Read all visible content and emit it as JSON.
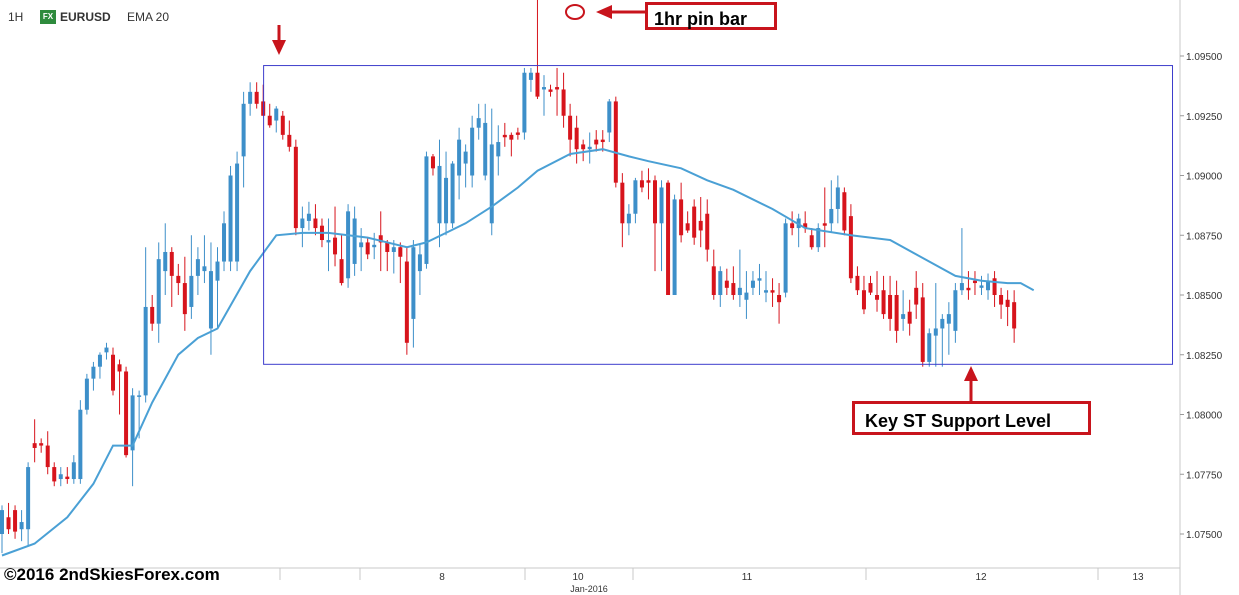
{
  "header": {
    "timeframe": "1H",
    "fx_badge": "FX",
    "symbol": "EURUSD",
    "indicator": "EMA 20"
  },
  "colors": {
    "up": "#3d8fc9",
    "down": "#d7141c",
    "ema": "#4aa0d5",
    "range_box": "#3d3dcc",
    "annotation": "#c8141c"
  },
  "annotations": {
    "pin_bar_label": "1hr pin bar",
    "support_label": "Key ST Support Level"
  },
  "copyright": "©2016 2ndSkiesForex.com",
  "chart_data": {
    "type": "candlestick",
    "title": "",
    "xlabel": "Jan-2016",
    "ylabel": "",
    "ylim": [
      1.0737,
      1.099
    ],
    "y_ticks": [
      "1.09500",
      "1.09250",
      "1.09000",
      "1.08750",
      "1.08500",
      "1.08250",
      "1.08000",
      "1.07750",
      "1.07500"
    ],
    "x_ticks": [
      "8",
      "10",
      "11",
      "12",
      "13"
    ],
    "x_month_label": "Jan-2016",
    "range_box": {
      "top": 1.0946,
      "bottom": 1.0821,
      "start_bar": 37,
      "end_bar": 167
    },
    "series": [
      {
        "name": "EURUSD",
        "fields": [
          "open",
          "high",
          "low",
          "close"
        ],
        "ohlc": [
          [
            1.075,
            1.0762,
            1.0742,
            1.076
          ],
          [
            1.0757,
            1.0763,
            1.075,
            1.0752
          ],
          [
            1.076,
            1.0762,
            1.0748,
            1.0751
          ],
          [
            1.0752,
            1.076,
            1.0747,
            1.0755
          ],
          [
            1.0752,
            1.078,
            1.0745,
            1.0778
          ],
          [
            1.0788,
            1.0798,
            1.078,
            1.0786
          ],
          [
            1.0788,
            1.079,
            1.0784,
            1.0787
          ],
          [
            1.0787,
            1.0793,
            1.0775,
            1.0778
          ],
          [
            1.0778,
            1.078,
            1.077,
            1.0772
          ],
          [
            1.0773,
            1.0778,
            1.077,
            1.0775
          ],
          [
            1.0774,
            1.0778,
            1.0771,
            1.0773
          ],
          [
            1.0773,
            1.0783,
            1.0771,
            1.078
          ],
          [
            1.0773,
            1.0806,
            1.0771,
            1.0802
          ],
          [
            1.0802,
            1.0817,
            1.08,
            1.0815
          ],
          [
            1.0815,
            1.0822,
            1.081,
            1.082
          ],
          [
            1.082,
            1.0826,
            1.0815,
            1.0825
          ],
          [
            1.0826,
            1.083,
            1.0823,
            1.0828
          ],
          [
            1.0825,
            1.0828,
            1.0808,
            1.081
          ],
          [
            1.0821,
            1.0823,
            1.08,
            1.0818
          ],
          [
            1.0818,
            1.082,
            1.0782,
            1.0783
          ],
          [
            1.0785,
            1.0811,
            1.077,
            1.0808
          ],
          [
            1.0808,
            1.081,
            1.079,
            1.0808
          ],
          [
            1.0808,
            1.087,
            1.0805,
            1.0845
          ],
          [
            1.0845,
            1.085,
            1.0835,
            1.0838
          ],
          [
            1.0838,
            1.0872,
            1.083,
            1.0865
          ],
          [
            1.086,
            1.088,
            1.085,
            1.0868
          ],
          [
            1.0868,
            1.087,
            1.0845,
            1.0858
          ],
          [
            1.0858,
            1.0863,
            1.085,
            1.0855
          ],
          [
            1.0855,
            1.0866,
            1.0835,
            1.0842
          ],
          [
            1.0845,
            1.0875,
            1.084,
            1.0858
          ],
          [
            1.0858,
            1.087,
            1.085,
            1.0865
          ],
          [
            1.086,
            1.0875,
            1.0855,
            1.0862
          ],
          [
            1.0836,
            1.0872,
            1.0825,
            1.086
          ],
          [
            1.0856,
            1.087,
            1.0836,
            1.0864
          ],
          [
            1.0864,
            1.0885,
            1.086,
            1.088
          ],
          [
            1.0864,
            1.0904,
            1.086,
            1.09
          ],
          [
            1.0864,
            1.091,
            1.086,
            1.0905
          ],
          [
            1.0908,
            1.0935,
            1.0895,
            1.093
          ],
          [
            1.093,
            1.0939,
            1.0925,
            1.0935
          ],
          [
            1.0935,
            1.0939,
            1.0928,
            1.093
          ],
          [
            1.0931,
            1.0938,
            1.0925,
            1.0925
          ],
          [
            1.0925,
            1.093,
            1.092,
            1.0921
          ],
          [
            1.0923,
            1.0929,
            1.0918,
            1.0928
          ],
          [
            1.0925,
            1.0927,
            1.0915,
            1.0917
          ],
          [
            1.0917,
            1.0923,
            1.091,
            1.0912
          ],
          [
            1.0912,
            1.0915,
            1.0875,
            1.0878
          ],
          [
            1.0878,
            1.0887,
            1.087,
            1.0882
          ],
          [
            1.0881,
            1.0889,
            1.0877,
            1.0884
          ],
          [
            1.0882,
            1.0888,
            1.0875,
            1.0878
          ],
          [
            1.0879,
            1.0882,
            1.087,
            1.0873
          ],
          [
            1.0872,
            1.0882,
            1.086,
            1.0873
          ],
          [
            1.0874,
            1.0887,
            1.0862,
            1.0867
          ],
          [
            1.0865,
            1.0875,
            1.0854,
            1.0855
          ],
          [
            1.0857,
            1.0888,
            1.0853,
            1.0885
          ],
          [
            1.0863,
            1.0887,
            1.0858,
            1.0882
          ],
          [
            1.087,
            1.0878,
            1.086,
            1.0872
          ],
          [
            1.0872,
            1.0874,
            1.0865,
            1.0867
          ],
          [
            1.087,
            1.0876,
            1.0865,
            1.0871
          ],
          [
            1.0875,
            1.0885,
            1.086,
            1.0872
          ],
          [
            1.0872,
            1.0873,
            1.086,
            1.0868
          ],
          [
            1.0868,
            1.0873,
            1.0859,
            1.087
          ],
          [
            1.087,
            1.0872,
            1.0855,
            1.0866
          ],
          [
            1.0864,
            1.087,
            1.0825,
            1.083
          ],
          [
            1.084,
            1.0873,
            1.0828,
            1.087
          ],
          [
            1.086,
            1.0871,
            1.085,
            1.0867
          ],
          [
            1.0863,
            1.091,
            1.0861,
            1.0908
          ],
          [
            1.0908,
            1.0909,
            1.09,
            1.0903
          ],
          [
            1.088,
            1.0915,
            1.087,
            1.0904
          ],
          [
            1.088,
            1.091,
            1.0875,
            1.0899
          ],
          [
            1.088,
            1.0906,
            1.0878,
            1.0905
          ],
          [
            1.09,
            1.092,
            1.089,
            1.0915
          ],
          [
            1.0905,
            1.0913,
            1.0895,
            1.091
          ],
          [
            1.09,
            1.0925,
            1.0895,
            1.092
          ],
          [
            1.092,
            1.093,
            1.0915,
            1.0924
          ],
          [
            1.09,
            1.093,
            1.0898,
            1.0922
          ],
          [
            1.088,
            1.0928,
            1.0875,
            1.0913
          ],
          [
            1.0908,
            1.0921,
            1.09,
            1.0914
          ],
          [
            1.0917,
            1.0922,
            1.0912,
            1.0916
          ],
          [
            1.0917,
            1.0918,
            1.0908,
            1.0915
          ],
          [
            1.0918,
            1.092,
            1.0915,
            1.0917
          ],
          [
            1.0918,
            1.0945,
            1.0915,
            1.0943
          ],
          [
            1.094,
            1.0945,
            1.0935,
            1.0943
          ],
          [
            1.0943,
            1.0985,
            1.0932,
            1.0933
          ],
          [
            1.0936,
            1.0942,
            1.0925,
            1.0937
          ],
          [
            1.0936,
            1.0938,
            1.0933,
            1.0935
          ],
          [
            1.0937,
            1.0945,
            1.0925,
            1.0936
          ],
          [
            1.0936,
            1.0943,
            1.092,
            1.0925
          ],
          [
            1.0925,
            1.093,
            1.0908,
            1.0915
          ],
          [
            1.092,
            1.0925,
            1.0905,
            1.0911
          ],
          [
            1.0913,
            1.0915,
            1.0906,
            1.0911
          ],
          [
            1.0911,
            1.0918,
            1.0905,
            1.0912
          ],
          [
            1.0915,
            1.0919,
            1.091,
            1.0913
          ],
          [
            1.0915,
            1.0919,
            1.091,
            1.0914
          ],
          [
            1.0918,
            1.0932,
            1.0914,
            1.0931
          ],
          [
            1.0931,
            1.0933,
            1.0895,
            1.0897
          ],
          [
            1.0897,
            1.0901,
            1.087,
            1.088
          ],
          [
            1.088,
            1.0888,
            1.0875,
            1.0884
          ],
          [
            1.0884,
            1.0899,
            1.088,
            1.0898
          ],
          [
            1.0898,
            1.0902,
            1.0893,
            1.0895
          ],
          [
            1.0898,
            1.0903,
            1.089,
            1.0897
          ],
          [
            1.0898,
            1.09,
            1.086,
            1.088
          ],
          [
            1.088,
            1.0898,
            1.086,
            1.0895
          ],
          [
            1.0897,
            1.0898,
            1.085,
            1.085
          ],
          [
            1.085,
            1.0892,
            1.085,
            1.089
          ],
          [
            1.089,
            1.0897,
            1.0872,
            1.0875
          ],
          [
            1.088,
            1.0885,
            1.0876,
            1.0877
          ],
          [
            1.0887,
            1.089,
            1.0871,
            1.0874
          ],
          [
            1.0881,
            1.0891,
            1.087,
            1.0877
          ],
          [
            1.0884,
            1.089,
            1.0864,
            1.0869
          ],
          [
            1.0862,
            1.0869,
            1.0848,
            1.085
          ],
          [
            1.085,
            1.0862,
            1.0845,
            1.086
          ],
          [
            1.0856,
            1.0861,
            1.085,
            1.0853
          ],
          [
            1.0855,
            1.0862,
            1.0848,
            1.085
          ],
          [
            1.085,
            1.0869,
            1.0845,
            1.0853
          ],
          [
            1.0848,
            1.086,
            1.084,
            1.0851
          ],
          [
            1.0853,
            1.086,
            1.085,
            1.0856
          ],
          [
            1.0856,
            1.0863,
            1.085,
            1.0857
          ],
          [
            1.0851,
            1.086,
            1.0847,
            1.0852
          ],
          [
            1.0852,
            1.0857,
            1.0845,
            1.0851
          ],
          [
            1.085,
            1.0855,
            1.0838,
            1.0847
          ],
          [
            1.0851,
            1.0882,
            1.0849,
            1.088
          ],
          [
            1.088,
            1.0885,
            1.0875,
            1.0878
          ],
          [
            1.0878,
            1.0884,
            1.087,
            1.0882
          ],
          [
            1.088,
            1.0885,
            1.0876,
            1.0878
          ],
          [
            1.0875,
            1.0878,
            1.0869,
            1.087
          ],
          [
            1.087,
            1.088,
            1.0868,
            1.0878
          ],
          [
            1.088,
            1.0895,
            1.087,
            1.0879
          ],
          [
            1.088,
            1.0898,
            1.0876,
            1.0886
          ],
          [
            1.0886,
            1.09,
            1.088,
            1.0895
          ],
          [
            1.0893,
            1.0895,
            1.0875,
            1.0877
          ],
          [
            1.0883,
            1.0888,
            1.0855,
            1.0857
          ],
          [
            1.0858,
            1.0862,
            1.085,
            1.0852
          ],
          [
            1.0852,
            1.0858,
            1.0842,
            1.0844
          ],
          [
            1.0855,
            1.0858,
            1.085,
            1.0851
          ],
          [
            1.085,
            1.086,
            1.0843,
            1.0848
          ],
          [
            1.0852,
            1.0858,
            1.084,
            1.0842
          ],
          [
            1.085,
            1.0858,
            1.0835,
            1.084
          ],
          [
            1.085,
            1.0856,
            1.083,
            1.0835
          ],
          [
            1.084,
            1.0852,
            1.0835,
            1.0842
          ],
          [
            1.0843,
            1.0848,
            1.0833,
            1.0838
          ],
          [
            1.0853,
            1.086,
            1.084,
            1.0846
          ],
          [
            1.0849,
            1.0855,
            1.082,
            1.0822
          ],
          [
            1.0822,
            1.0836,
            1.082,
            1.0834
          ],
          [
            1.0833,
            1.0855,
            1.082,
            1.0836
          ],
          [
            1.0836,
            1.0842,
            1.082,
            1.084
          ],
          [
            1.0838,
            1.0847,
            1.0825,
            1.0842
          ],
          [
            1.0835,
            1.0855,
            1.083,
            1.0852
          ],
          [
            1.0852,
            1.0878,
            1.085,
            1.0855
          ],
          [
            1.0853,
            1.086,
            1.0848,
            1.0852
          ],
          [
            1.0856,
            1.086,
            1.085,
            1.0855
          ],
          [
            1.0853,
            1.0858,
            1.085,
            1.0854
          ],
          [
            1.0852,
            1.0859,
            1.0848,
            1.0856
          ],
          [
            1.0857,
            1.086,
            1.0845,
            1.085
          ],
          [
            1.085,
            1.0853,
            1.084,
            1.0846
          ],
          [
            1.0848,
            1.0852,
            1.0837,
            1.0845
          ],
          [
            1.0847,
            1.0852,
            1.083,
            1.0836
          ]
        ]
      },
      {
        "name": "EMA 20",
        "points": [
          [
            0,
            1.0741
          ],
          [
            5,
            1.0746
          ],
          [
            10,
            1.0757
          ],
          [
            14,
            1.0771
          ],
          [
            17,
            1.0787
          ],
          [
            20,
            1.0787
          ],
          [
            23,
            1.0805
          ],
          [
            27,
            1.0825
          ],
          [
            30,
            1.0832
          ],
          [
            33,
            1.0836
          ],
          [
            38,
            1.086
          ],
          [
            42,
            1.0875
          ],
          [
            46,
            1.0876
          ],
          [
            50,
            1.0876
          ],
          [
            56,
            1.0874
          ],
          [
            62,
            1.087
          ],
          [
            65,
            1.0872
          ],
          [
            68,
            1.0876
          ],
          [
            71,
            1.088
          ],
          [
            75,
            1.0887
          ],
          [
            79,
            1.0895
          ],
          [
            82,
            1.0902
          ],
          [
            87,
            1.0909
          ],
          [
            92,
            1.0911
          ],
          [
            96,
            1.0908
          ],
          [
            99,
            1.0906
          ],
          [
            104,
            1.0903
          ],
          [
            108,
            1.0898
          ],
          [
            112,
            1.0894
          ],
          [
            118,
            1.0886
          ],
          [
            123,
            1.0878
          ],
          [
            130,
            1.0875
          ],
          [
            136,
            1.0873
          ],
          [
            140,
            1.0867
          ],
          [
            146,
            1.0858
          ],
          [
            150,
            1.0856
          ],
          [
            154,
            1.0855
          ],
          [
            156,
            1.0855
          ],
          [
            158,
            1.0852
          ]
        ]
      }
    ]
  }
}
